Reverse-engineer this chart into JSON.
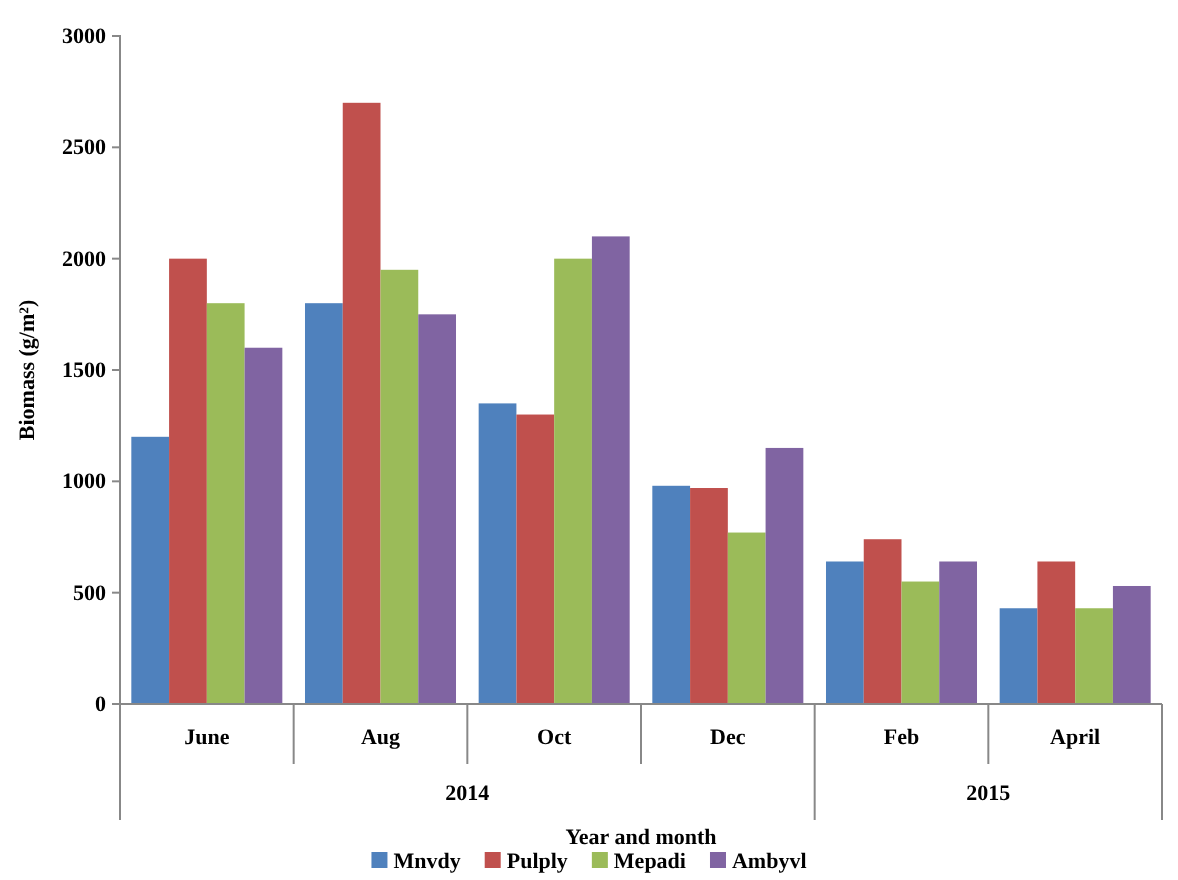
{
  "chart_data": {
    "type": "bar",
    "xlabel": "Year and month",
    "ylabel": "Biomass (g/m²)",
    "categories": [
      "June",
      "Aug",
      "Oct",
      "Dec",
      "Feb",
      "April"
    ],
    "series": [
      {
        "name": "Mnvdy",
        "color": "#4f81bd",
        "values": [
          1200,
          1800,
          1350,
          980,
          640,
          430
        ]
      },
      {
        "name": "Pulply",
        "color": "#c0504d",
        "values": [
          2000,
          2700,
          1300,
          970,
          740,
          640
        ]
      },
      {
        "name": "Mepadi",
        "color": "#9bbb59",
        "values": [
          1800,
          1950,
          2000,
          770,
          550,
          430
        ]
      },
      {
        "name": "Ambyvl",
        "color": "#8064a2",
        "values": [
          1600,
          1750,
          2100,
          1150,
          640,
          530
        ]
      }
    ],
    "ylim": [
      0,
      3000
    ],
    "yticks": [
      0,
      500,
      1000,
      1500,
      2000,
      2500,
      3000
    ],
    "annotations": [
      "2014",
      "2015"
    ],
    "legend": "bottom"
  }
}
